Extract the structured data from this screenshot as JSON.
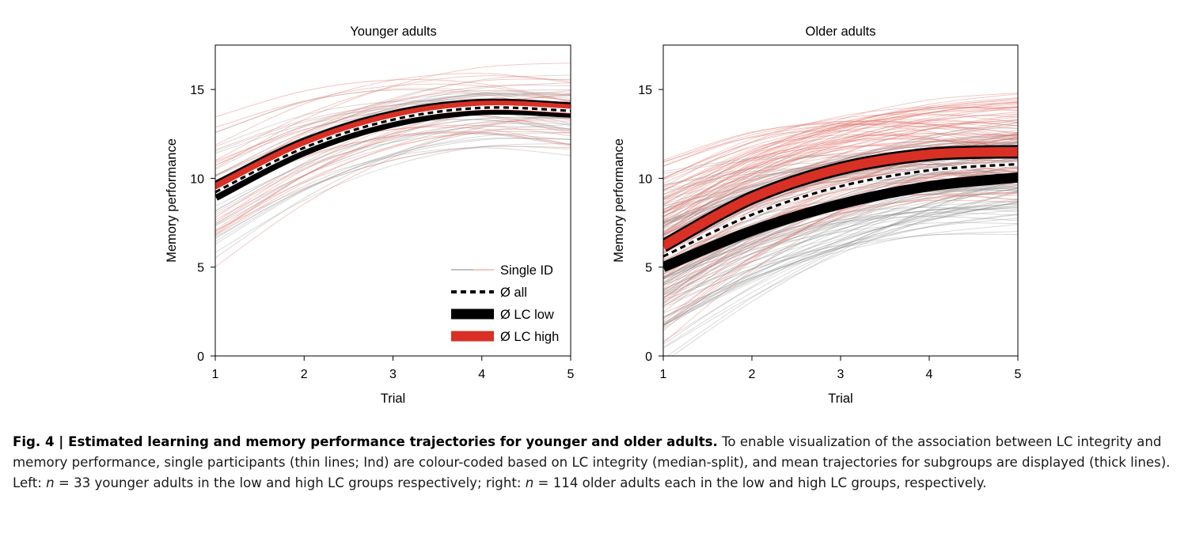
{
  "chart_data": [
    {
      "type": "line",
      "title": "Younger adults",
      "xlabel": "Trial",
      "ylabel": "Memory performance",
      "x": [
        1,
        2,
        3,
        4,
        5
      ],
      "xticks": [
        "1",
        "2",
        "3",
        "4",
        "5"
      ],
      "yticks": [
        "0",
        "5",
        "10",
        "15"
      ],
      "xlim": [
        1,
        5
      ],
      "ylim": [
        0,
        17.5
      ],
      "grid": false,
      "legend_position": "bottom-right",
      "legend": [
        "Single ID",
        "Ø all",
        "Ø LC low",
        "Ø LC high"
      ],
      "series": [
        {
          "name": "Ø LC low",
          "style": "thick",
          "color": "#000000",
          "values": [
            9.0,
            11.55,
            13.15,
            13.85,
            13.7
          ]
        },
        {
          "name": "Ø LC high",
          "style": "thick",
          "color": "#d93025",
          "values": [
            9.45,
            11.9,
            13.45,
            14.1,
            13.9
          ]
        },
        {
          "name": "Ø all",
          "style": "dashed",
          "color": "#000000",
          "values": [
            9.22,
            11.72,
            13.3,
            13.97,
            13.8
          ]
        }
      ]
    },
    {
      "type": "line",
      "title": "Older adults",
      "xlabel": "Trial",
      "ylabel": "Memory performance",
      "x": [
        1,
        2,
        3,
        4,
        5
      ],
      "xticks": [
        "1",
        "2",
        "3",
        "4",
        "5"
      ],
      "yticks": [
        "0",
        "5",
        "10",
        "15"
      ],
      "xlim": [
        1,
        5
      ],
      "ylim": [
        0,
        17.5
      ],
      "grid": false,
      "series": [
        {
          "name": "Ø LC low",
          "style": "thick",
          "color": "#000000",
          "values": [
            5.0,
            7.05,
            8.55,
            9.55,
            10.05
          ]
        },
        {
          "name": "Ø LC high",
          "style": "thick",
          "color": "#d93025",
          "values": [
            6.2,
            8.9,
            10.55,
            11.35,
            11.5
          ]
        },
        {
          "name": "Ø all",
          "style": "dashed",
          "color": "#000000",
          "values": [
            5.6,
            7.95,
            9.55,
            10.45,
            10.8
          ]
        }
      ]
    }
  ],
  "caption": {
    "bold": "Fig. 4 | Estimated learning and memory performance trajectories for younger and older adults.",
    "part1": " To enable visualization of the association between LC integrity and memory performance, single participants (thin lines; Ind) are colour-coded based on LC integrity (median-split), and mean trajectories for subgroups are displayed (thick lines). Left: ",
    "n1": "n",
    "part2": " = 33 younger adults in the low and high LC groups respectively; right: ",
    "n2": "n",
    "part3": " = 114 older adults each in the low and high LC groups, respectively."
  }
}
